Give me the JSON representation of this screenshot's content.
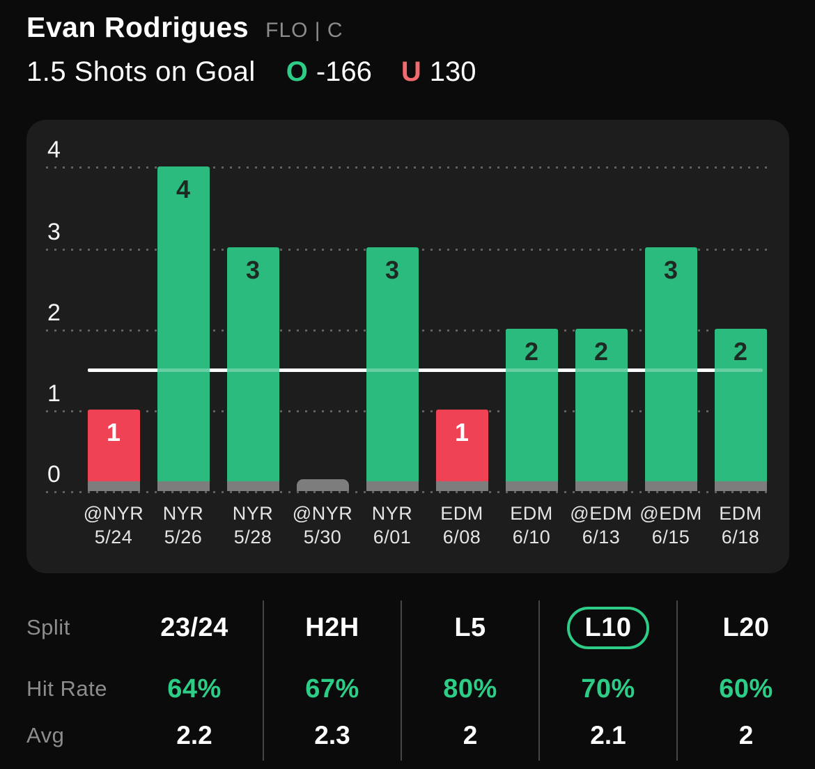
{
  "header": {
    "player_name": "Evan Rodrigues",
    "team_position": "FLO | C",
    "prop_line": "1.5 Shots on Goal",
    "over_label": "O",
    "over_odds": "-166",
    "under_label": "U",
    "under_odds": "130"
  },
  "colors": {
    "page_bg": "#0B0B0B",
    "panel_bg": "#1D1D1D",
    "bar_green": "#2CBB7E",
    "bar_red": "#EF4254",
    "bar_base_gray": "#7D7D7D",
    "accent_green": "#2ECD87",
    "under_red": "#F16B6E",
    "muted_text": "#8D8D8D",
    "prop_line_white": "#FFFFFF"
  },
  "chart_data": {
    "type": "bar",
    "title": "1.5 Shots on Goal",
    "xlabel": "",
    "ylabel": "",
    "ylim": [
      0,
      4
    ],
    "yticks": [
      0,
      1,
      2,
      3,
      4
    ],
    "ytick_labels_top_to_bottom": [
      "4",
      "3",
      "2",
      "1",
      "0"
    ],
    "grid": "dotted horizontal gridlines at each integer",
    "legend": "none",
    "prop_line_value": 1.5,
    "categories": [
      "@NYR 5/24",
      "NYR 5/26",
      "NYR 5/28",
      "@NYR 5/30",
      "NYR 6/01",
      "EDM 6/08",
      "EDM 6/10",
      "@EDM 6/13",
      "@EDM 6/15",
      "EDM 6/18"
    ],
    "values": [
      1,
      4,
      3,
      0,
      3,
      1,
      2,
      2,
      3,
      2
    ],
    "bar_color_rule": "green = over 1.5, red = under 1.5, gray stub = 0",
    "games": [
      {
        "opp": "@NYR",
        "date": "5/24",
        "value": 1,
        "result": "under"
      },
      {
        "opp": "NYR",
        "date": "5/26",
        "value": 4,
        "result": "over"
      },
      {
        "opp": "NYR",
        "date": "5/28",
        "value": 3,
        "result": "over"
      },
      {
        "opp": "@NYR",
        "date": "5/30",
        "value": 0,
        "result": "zero"
      },
      {
        "opp": "NYR",
        "date": "6/01",
        "value": 3,
        "result": "over"
      },
      {
        "opp": "EDM",
        "date": "6/08",
        "value": 1,
        "result": "under"
      },
      {
        "opp": "EDM",
        "date": "6/10",
        "value": 2,
        "result": "over"
      },
      {
        "opp": "@EDM",
        "date": "6/13",
        "value": 2,
        "result": "over"
      },
      {
        "opp": "@EDM",
        "date": "6/15",
        "value": 3,
        "result": "over"
      },
      {
        "opp": "EDM",
        "date": "6/18",
        "value": 2,
        "result": "over"
      }
    ]
  },
  "table": {
    "row_labels": {
      "split": "Split",
      "hit_rate": "Hit Rate",
      "avg": "Avg"
    },
    "selected_column": "L10",
    "columns": [
      {
        "label": "23/24",
        "hit_rate": "64%",
        "avg": "2.2",
        "selected": false
      },
      {
        "label": "H2H",
        "hit_rate": "67%",
        "avg": "2.3",
        "selected": false
      },
      {
        "label": "L5",
        "hit_rate": "80%",
        "avg": "2",
        "selected": false
      },
      {
        "label": "L10",
        "hit_rate": "70%",
        "avg": "2.1",
        "selected": true
      },
      {
        "label": "L20",
        "hit_rate": "60%",
        "avg": "2",
        "selected": false
      }
    ]
  }
}
